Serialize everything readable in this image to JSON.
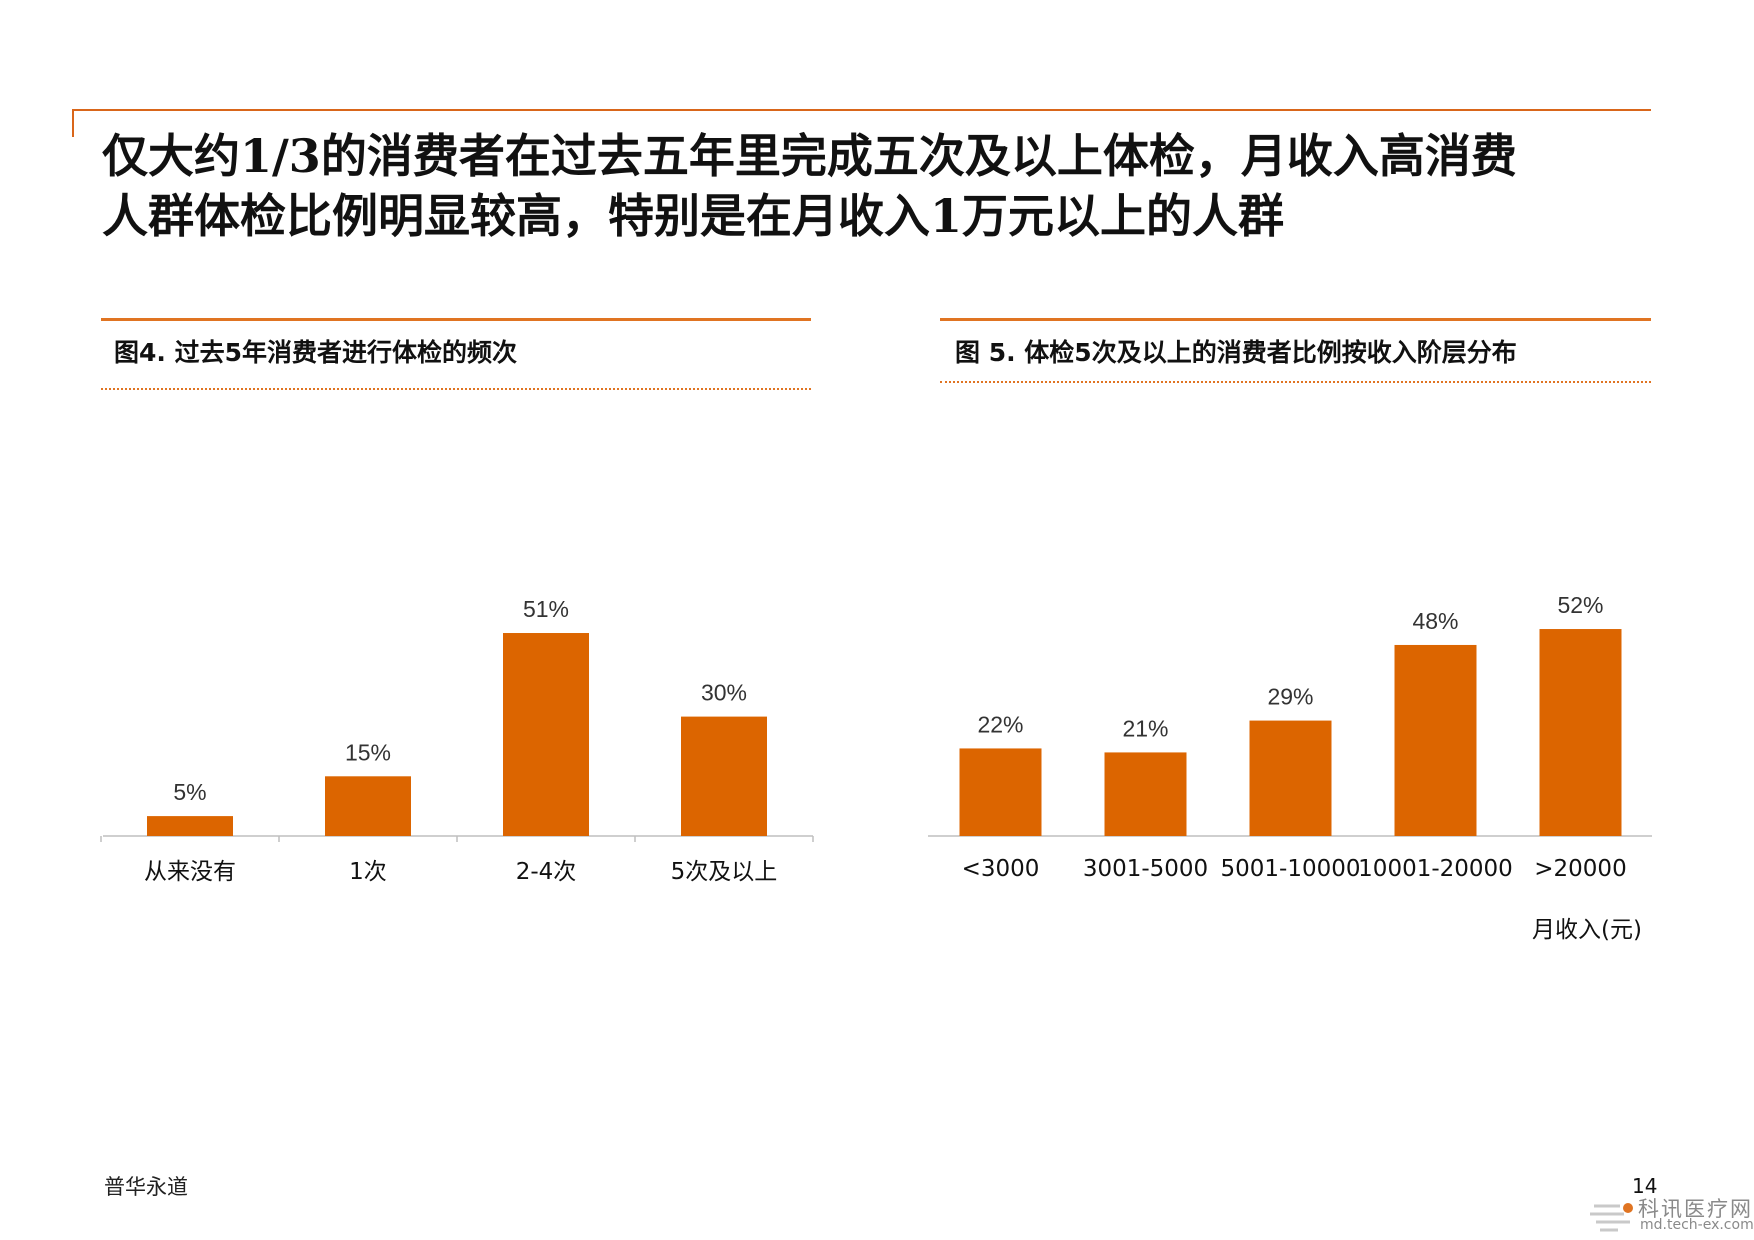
{
  "slide": {
    "title_lines": [
      "仅大约1/3的消费者在过去五年里完成五次及以上体检，月收入高消费",
      "人群体检比例明显较高，特别是在月收入1万元以上的人群"
    ],
    "footer": "普华永道",
    "page_number": "14",
    "watermark": {
      "site_name": "科讯医疗网",
      "url": "md.tech-ex.com"
    }
  },
  "colors": {
    "accent": "#e07422",
    "bar": "#dc6500"
  },
  "chart_data": [
    {
      "type": "bar",
      "title": "图4. 过去5年消费者进行体检的频次",
      "categories": [
        "从来没有",
        "1次",
        "2-4次",
        "5次及以上"
      ],
      "values": [
        5,
        15,
        51,
        30
      ],
      "value_labels": [
        "5%",
        "15%",
        "51%",
        "30%"
      ],
      "unit": "%",
      "xlabel": "",
      "ylabel": "",
      "ylim": [
        0,
        60
      ],
      "grid": false,
      "legend": "none"
    },
    {
      "type": "bar",
      "title": "图 5. 体检5次及以上的消费者比例按收入阶层分布",
      "categories": [
        "<3000",
        "3001-5000",
        "5001-10000",
        "10001-20000",
        ">20000"
      ],
      "values": [
        22,
        21,
        29,
        48,
        52
      ],
      "value_labels": [
        "22%",
        "21%",
        "29%",
        "48%",
        "52%"
      ],
      "unit": "%",
      "xlabel": "月收入(元)",
      "ylabel": "",
      "ylim": [
        0,
        60
      ],
      "grid": false,
      "legend": "none"
    }
  ]
}
